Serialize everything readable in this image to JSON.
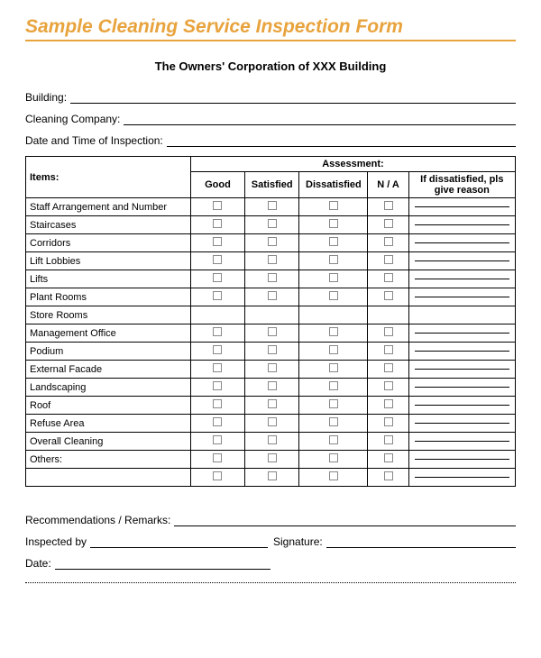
{
  "header": {
    "title": "Sample Cleaning Service Inspection Form",
    "subtitle": "The Owners' Corporation of XXX Building",
    "title_color": "#e8a33d"
  },
  "fields": {
    "building_label": "Building:",
    "company_label": "Cleaning Company:",
    "datetime_label": "Date and Time of Inspection:"
  },
  "table": {
    "headers": {
      "items": "Items:",
      "assessment": "Assessment:",
      "good": "Good",
      "satisfied": "Satisfied",
      "dissatisfied": "Dissatisfied",
      "na": "N / A",
      "reason": "If dissatisfied, pls give reason"
    },
    "rows": [
      {
        "label": "Staff Arrangement and Number",
        "has_checks": true
      },
      {
        "label": "Staircases",
        "has_checks": true
      },
      {
        "label": "Corridors",
        "has_checks": true
      },
      {
        "label": "Lift Lobbies",
        "has_checks": true
      },
      {
        "label": "Lifts",
        "has_checks": true
      },
      {
        "label": "Plant Rooms",
        "has_checks": true
      },
      {
        "label": "Store Rooms",
        "has_checks": false
      },
      {
        "label": "Management Office",
        "has_checks": true
      },
      {
        "label": "Podium",
        "has_checks": true
      },
      {
        "label": "External Facade",
        "has_checks": true
      },
      {
        "label": "Landscaping",
        "has_checks": true
      },
      {
        "label": "Roof",
        "has_checks": true
      },
      {
        "label": "Refuse Area",
        "has_checks": true
      },
      {
        "label": "Overall Cleaning",
        "has_checks": true
      },
      {
        "label": "Others:",
        "has_checks": true
      },
      {
        "label": "",
        "has_checks": true
      }
    ]
  },
  "footer": {
    "recommendations_label": "Recommendations / Remarks:",
    "inspected_label": "Inspected by",
    "signature_label": "Signature:",
    "date_label": "Date:"
  }
}
